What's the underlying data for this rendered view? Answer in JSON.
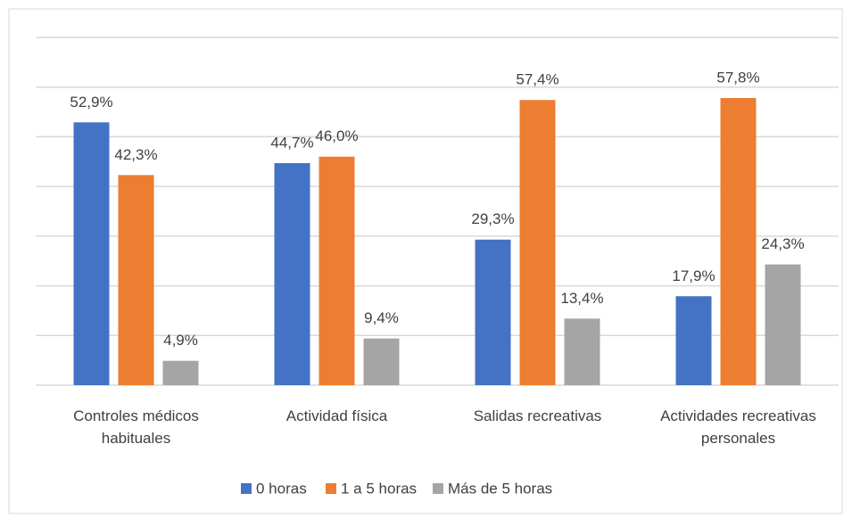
{
  "chart_data": {
    "type": "bar",
    "categories": [
      "Controles médicos habituales",
      "Actividad física",
      "Salidas recreativas",
      "Actividades recreativas personales"
    ],
    "series": [
      {
        "name": "0 horas",
        "color": "#4472c4",
        "values": [
          52.9,
          44.7,
          29.3,
          17.9
        ],
        "value_labels": [
          "52,9%",
          "44,7%",
          "29,3%",
          "17,9%"
        ]
      },
      {
        "name": "1 a 5 horas",
        "color": "#ed7d31",
        "values": [
          42.3,
          46.0,
          57.4,
          57.8
        ],
        "value_labels": [
          "42,3%",
          "46,0%",
          "57,4%",
          "57,8%"
        ]
      },
      {
        "name": "Más de 5 horas",
        "color": "#a5a5a5",
        "values": [
          4.9,
          9.4,
          13.4,
          24.3
        ],
        "value_labels": [
          "4,9%",
          "9,4%",
          "13,4%",
          "24,3%"
        ]
      }
    ],
    "ylim": [
      0,
      70
    ],
    "yticks": [
      0,
      10,
      20,
      30,
      40,
      50,
      60,
      70
    ],
    "grid": true,
    "legend": "bottom"
  }
}
